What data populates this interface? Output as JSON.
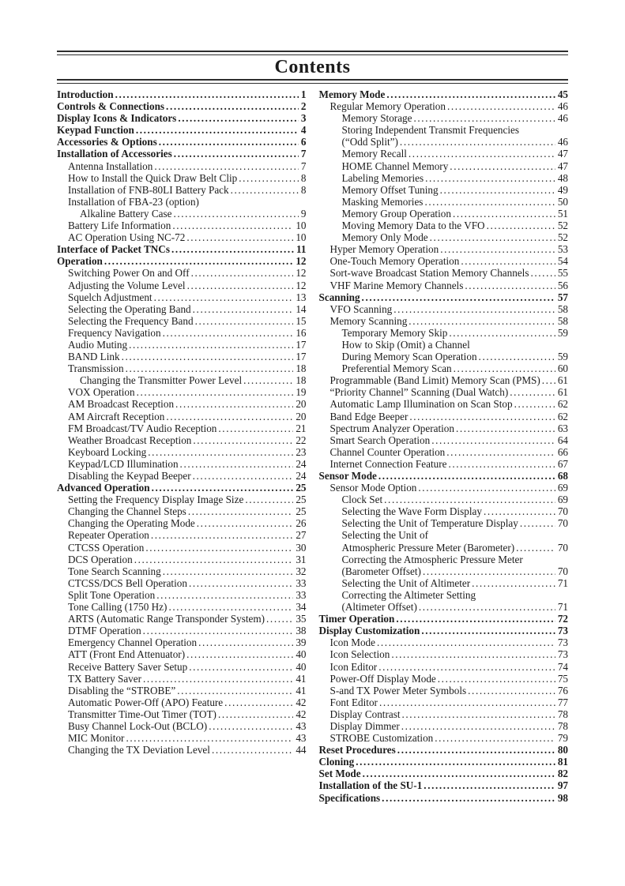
{
  "page": {
    "title": "Contents"
  },
  "toc": {
    "left_column": [
      {
        "label": "Introduction",
        "page": "1",
        "level": 0,
        "bold": true
      },
      {
        "label": "Controls & Connections",
        "page": "2",
        "level": 0,
        "bold": true
      },
      {
        "label": "Display Icons & Indicators",
        "page": "3",
        "level": 0,
        "bold": true
      },
      {
        "label": "Keypad Function",
        "page": "4",
        "level": 0,
        "bold": true
      },
      {
        "label": "Accessories & Options",
        "page": "6",
        "level": 0,
        "bold": true
      },
      {
        "label": "Installation of Accessories",
        "page": "7",
        "level": 0,
        "bold": true
      },
      {
        "label": "Antenna Installation",
        "page": "7",
        "level": 1,
        "bold": false
      },
      {
        "label": "How to Install the Quick Draw Belt Clip",
        "page": "8",
        "level": 1,
        "bold": false
      },
      {
        "label": "Installation of FNB-80LI Battery Pack",
        "page": "8",
        "level": 1,
        "bold": false
      },
      {
        "label": "Installation of FBA-23 (option)",
        "page": null,
        "level": 1,
        "bold": false
      },
      {
        "label": "Alkaline Battery Case",
        "page": "9",
        "level": 2,
        "bold": false
      },
      {
        "label": "Battery Life Information",
        "page": "10",
        "level": 1,
        "bold": false
      },
      {
        "label": "AC Operation Using NC-72",
        "page": "10",
        "level": 1,
        "bold": false
      },
      {
        "label": "Interface of Packet TNCs",
        "page": "11",
        "level": 0,
        "bold": true
      },
      {
        "label": "Operation",
        "page": "12",
        "level": 0,
        "bold": true
      },
      {
        "label": "Switching Power On and Off",
        "page": "12",
        "level": 1,
        "bold": false
      },
      {
        "label": "Adjusting the Volume Level",
        "page": "12",
        "level": 1,
        "bold": false
      },
      {
        "label": "Squelch Adjustment",
        "page": "13",
        "level": 1,
        "bold": false
      },
      {
        "label": "Selecting the Operating Band",
        "page": "14",
        "level": 1,
        "bold": false
      },
      {
        "label": "Selecting the Frequency Band",
        "page": "15",
        "level": 1,
        "bold": false
      },
      {
        "label": "Frequency Navigation",
        "page": "16",
        "level": 1,
        "bold": false
      },
      {
        "label": "Audio Muting",
        "page": "17",
        "level": 1,
        "bold": false
      },
      {
        "label": "BAND Link",
        "page": "17",
        "level": 1,
        "bold": false
      },
      {
        "label": "Transmission",
        "page": "18",
        "level": 1,
        "bold": false
      },
      {
        "label": "Changing the Transmitter Power Level",
        "page": "18",
        "level": 2,
        "bold": false
      },
      {
        "label": "VOX Operation",
        "page": "19",
        "level": 1,
        "bold": false
      },
      {
        "label": "AM Broadcast Reception",
        "page": "20",
        "level": 1,
        "bold": false
      },
      {
        "label": "AM Aircraft Reception",
        "page": "20",
        "level": 1,
        "bold": false
      },
      {
        "label": "FM Broadcast/TV Audio Reception",
        "page": "21",
        "level": 1,
        "bold": false
      },
      {
        "label": "Weather Broadcast Reception",
        "page": "22",
        "level": 1,
        "bold": false
      },
      {
        "label": "Keyboard Locking",
        "page": "23",
        "level": 1,
        "bold": false
      },
      {
        "label": "Keypad/LCD Illumination",
        "page": "24",
        "level": 1,
        "bold": false
      },
      {
        "label": "Disabling the Keypad Beeper",
        "page": "24",
        "level": 1,
        "bold": false
      },
      {
        "label": "Advanced Operation",
        "page": "25",
        "level": 0,
        "bold": true
      },
      {
        "label": "Setting the Frequency Display Image Size",
        "page": "25",
        "level": 1,
        "bold": false
      },
      {
        "label": "Changing the Channel Steps",
        "page": "25",
        "level": 1,
        "bold": false
      },
      {
        "label": "Changing the Operating Mode",
        "page": "26",
        "level": 1,
        "bold": false
      },
      {
        "label": "Repeater Operation",
        "page": "27",
        "level": 1,
        "bold": false
      },
      {
        "label": "CTCSS Operation",
        "page": "30",
        "level": 1,
        "bold": false
      },
      {
        "label": "DCS Operation",
        "page": "31",
        "level": 1,
        "bold": false
      },
      {
        "label": "Tone Search Scanning",
        "page": "32",
        "level": 1,
        "bold": false
      },
      {
        "label": "CTCSS/DCS Bell Operation",
        "page": "33",
        "level": 1,
        "bold": false
      },
      {
        "label": "Split Tone Operation",
        "page": "33",
        "level": 1,
        "bold": false
      },
      {
        "label": "Tone Calling (1750 Hz)",
        "page": "34",
        "level": 1,
        "bold": false
      },
      {
        "label": "ARTS (Automatic Range Transponder System)",
        "page": "35",
        "level": 1,
        "bold": false
      },
      {
        "label": "DTMF Operation",
        "page": "38",
        "level": 1,
        "bold": false
      },
      {
        "label": "Emergency Channel Operation",
        "page": "39",
        "level": 1,
        "bold": false
      },
      {
        "label": "ATT (Front End Attenuator)",
        "page": "40",
        "level": 1,
        "bold": false
      },
      {
        "label": "Receive Battery Saver Setup",
        "page": "40",
        "level": 1,
        "bold": false
      },
      {
        "label": "TX Battery Saver",
        "page": "41",
        "level": 1,
        "bold": false
      },
      {
        "label": "Disabling the “STROBE”",
        "page": "41",
        "level": 1,
        "bold": false
      },
      {
        "label": "Automatic Power-Off (APO) Feature",
        "page": "42",
        "level": 1,
        "bold": false
      },
      {
        "label": "Transmitter Time-Out Timer (TOT)",
        "page": "42",
        "level": 1,
        "bold": false
      },
      {
        "label": "Busy Channel Lock-Out (BCLO)",
        "page": "43",
        "level": 1,
        "bold": false
      },
      {
        "label": "MIC Monitor",
        "page": "43",
        "level": 1,
        "bold": false
      },
      {
        "label": "Changing the TX Deviation Level",
        "page": "44",
        "level": 1,
        "bold": false
      }
    ],
    "right_column": [
      {
        "label": "Memory Mode",
        "page": "45",
        "level": 0,
        "bold": true
      },
      {
        "label": "Regular Memory Operation",
        "page": "46",
        "level": 1,
        "bold": false
      },
      {
        "label": "Memory Storage",
        "page": "46",
        "level": 2,
        "bold": false
      },
      {
        "label": "Storing Independent Transmit Frequencies",
        "page": null,
        "level": 2,
        "bold": false
      },
      {
        "label": "(“Odd Split”)",
        "page": "46",
        "level": 2,
        "bold": false
      },
      {
        "label": "Memory Recall",
        "page": "47",
        "level": 2,
        "bold": false
      },
      {
        "label": "HOME Channel Memory",
        "page": "47",
        "level": 2,
        "bold": false
      },
      {
        "label": "Labeling Memories",
        "page": "48",
        "level": 2,
        "bold": false
      },
      {
        "label": "Memory Offset Tuning",
        "page": "49",
        "level": 2,
        "bold": false
      },
      {
        "label": "Masking Memories",
        "page": "50",
        "level": 2,
        "bold": false
      },
      {
        "label": "Memory Group Operation",
        "page": "51",
        "level": 2,
        "bold": false
      },
      {
        "label": "Moving Memory Data to the VFO",
        "page": "52",
        "level": 2,
        "bold": false
      },
      {
        "label": "Memory Only Mode",
        "page": "52",
        "level": 2,
        "bold": false
      },
      {
        "label": "Hyper Memory Operation",
        "page": "53",
        "level": 1,
        "bold": false
      },
      {
        "label": "One-Touch Memory Operation",
        "page": "54",
        "level": 1,
        "bold": false
      },
      {
        "label": "Sort-wave Broadcast Station Memory Channels",
        "page": "55",
        "level": 1,
        "bold": false
      },
      {
        "label": "VHF Marine Memory Channels",
        "page": "56",
        "level": 1,
        "bold": false
      },
      {
        "label": "Scanning",
        "page": "57",
        "level": 0,
        "bold": true
      },
      {
        "label": "VFO Scanning",
        "page": "58",
        "level": 1,
        "bold": false
      },
      {
        "label": "Memory Scanning",
        "page": "58",
        "level": 1,
        "bold": false
      },
      {
        "label": "Temporary Memory Skip",
        "page": "59",
        "level": 2,
        "bold": false
      },
      {
        "label": "How to Skip (Omit) a Channel",
        "page": null,
        "level": 2,
        "bold": false
      },
      {
        "label": "During Memory Scan Operation",
        "page": "59",
        "level": 2,
        "bold": false
      },
      {
        "label": "Preferential Memory Scan",
        "page": "60",
        "level": 2,
        "bold": false
      },
      {
        "label": "Programmable (Band Limit) Memory Scan (PMS)",
        "page": "61",
        "level": 1,
        "bold": false
      },
      {
        "label": "“Priority Channel” Scanning (Dual Watch)",
        "page": "61",
        "level": 1,
        "bold": false
      },
      {
        "label": "Automatic Lamp Illumination on Scan Stop",
        "page": "62",
        "level": 1,
        "bold": false
      },
      {
        "label": "Band Edge Beeper",
        "page": "62",
        "level": 1,
        "bold": false
      },
      {
        "label": "Spectrum Analyzer Operation",
        "page": "63",
        "level": 1,
        "bold": false
      },
      {
        "label": "Smart Search Operation",
        "page": "64",
        "level": 1,
        "bold": false
      },
      {
        "label": "Channel Counter Operation",
        "page": "66",
        "level": 1,
        "bold": false
      },
      {
        "label": "Internet Connection Feature",
        "page": "67",
        "level": 1,
        "bold": false
      },
      {
        "label": "Sensor Mode",
        "page": "68",
        "level": 0,
        "bold": true
      },
      {
        "label": "Sensor Mode Option",
        "page": "69",
        "level": 1,
        "bold": false
      },
      {
        "label": "Clock Set",
        "page": "69",
        "level": 2,
        "bold": false
      },
      {
        "label": "Selecting the Wave Form Display",
        "page": "70",
        "level": 2,
        "bold": false
      },
      {
        "label": "Selecting the Unit of Temperature Display",
        "page": "70",
        "level": 2,
        "bold": false
      },
      {
        "label": "Selecting the Unit of",
        "page": null,
        "level": 2,
        "bold": false
      },
      {
        "label": "Atmospheric Pressure Meter (Barometer)",
        "page": "70",
        "level": 2,
        "bold": false
      },
      {
        "label": "Correcting the Atmospheric Pressure Meter",
        "page": null,
        "level": 2,
        "bold": false
      },
      {
        "label": "(Barometer Offset)",
        "page": "70",
        "level": 2,
        "bold": false
      },
      {
        "label": "Selecting the Unit of Altimeter",
        "page": "71",
        "level": 2,
        "bold": false
      },
      {
        "label": "Correcting the Altimeter Setting",
        "page": null,
        "level": 2,
        "bold": false
      },
      {
        "label": "(Altimeter Offset)",
        "page": "71",
        "level": 2,
        "bold": false
      },
      {
        "label": "Timer Operation",
        "page": "72",
        "level": 0,
        "bold": true
      },
      {
        "label": "Display Customization",
        "page": "73",
        "level": 0,
        "bold": true
      },
      {
        "label": "Icon Mode",
        "page": "73",
        "level": 1,
        "bold": false
      },
      {
        "label": "Icon Selection",
        "page": "73",
        "level": 1,
        "bold": false
      },
      {
        "label": "Icon Editor",
        "page": "74",
        "level": 1,
        "bold": false
      },
      {
        "label": "Power-Off Display Mode",
        "page": "75",
        "level": 1,
        "bold": false
      },
      {
        "label": "S-and TX Power Meter Symbols",
        "page": "76",
        "level": 1,
        "bold": false
      },
      {
        "label": "Font Editor",
        "page": "77",
        "level": 1,
        "bold": false
      },
      {
        "label": "Display Contrast",
        "page": "78",
        "level": 1,
        "bold": false
      },
      {
        "label": "Display Dimmer",
        "page": "78",
        "level": 1,
        "bold": false
      },
      {
        "label": "STROBE Customization",
        "page": "79",
        "level": 1,
        "bold": false
      },
      {
        "label": "Reset Procedures",
        "page": "80",
        "level": 0,
        "bold": true
      },
      {
        "label": "Cloning",
        "page": "81",
        "level": 0,
        "bold": true
      },
      {
        "label": "Set Mode",
        "page": "82",
        "level": 0,
        "bold": true
      },
      {
        "label": "Installation of the SU-1",
        "page": "97",
        "level": 0,
        "bold": true
      },
      {
        "label": "Specifications",
        "page": "98",
        "level": 0,
        "bold": true
      }
    ]
  }
}
